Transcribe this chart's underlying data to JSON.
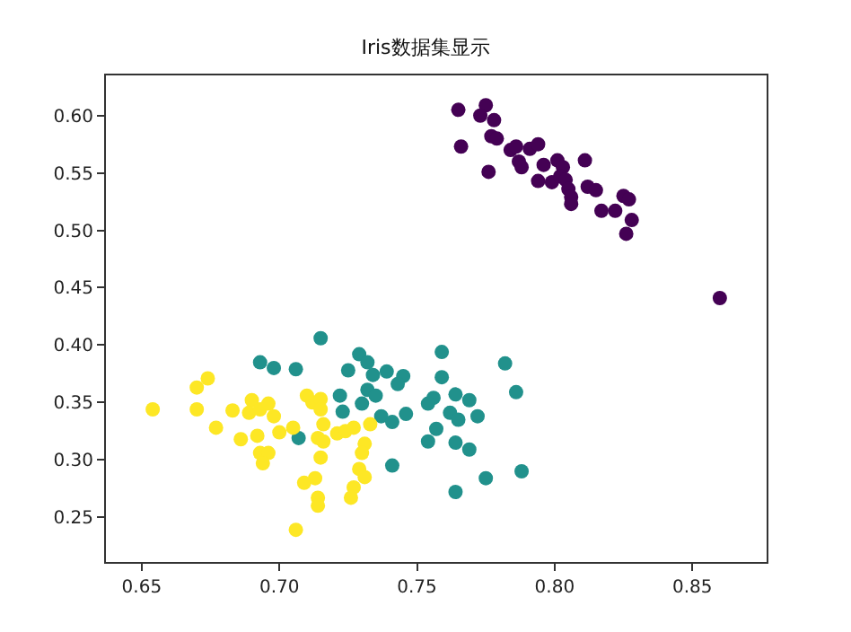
{
  "chart_data": {
    "type": "scatter",
    "title": "Iris数据集显示",
    "marker": "circle",
    "xlim": [
      0.637,
      0.877
    ],
    "ylim": [
      0.211,
      0.635
    ],
    "xticks": [
      {
        "value": 0.65,
        "label": "0.65"
      },
      {
        "value": 0.7,
        "label": "0.70"
      },
      {
        "value": 0.75,
        "label": "0.75"
      },
      {
        "value": 0.8,
        "label": "0.80"
      },
      {
        "value": 0.85,
        "label": "0.85"
      }
    ],
    "yticks": [
      {
        "value": 0.25,
        "label": "0.25"
      },
      {
        "value": 0.3,
        "label": "0.30"
      },
      {
        "value": 0.35,
        "label": "0.35"
      },
      {
        "value": 0.4,
        "label": "0.40"
      },
      {
        "value": 0.45,
        "label": "0.45"
      },
      {
        "value": 0.5,
        "label": "0.50"
      },
      {
        "value": 0.55,
        "label": "0.55"
      },
      {
        "value": 0.6,
        "label": "0.60"
      }
    ],
    "series": [
      {
        "color": "#440154",
        "x": [
          0.765,
          0.775,
          0.773,
          0.778,
          0.766,
          0.777,
          0.779,
          0.776,
          0.784,
          0.786,
          0.787,
          0.788,
          0.791,
          0.794,
          0.796,
          0.801,
          0.803,
          0.794,
          0.799,
          0.802,
          0.804,
          0.805,
          0.806,
          0.806,
          0.811,
          0.812,
          0.815,
          0.817,
          0.822,
          0.825,
          0.827,
          0.828,
          0.826,
          0.86
        ],
        "values": [
          0.605,
          0.609,
          0.6,
          0.596,
          0.573,
          0.582,
          0.58,
          0.551,
          0.57,
          0.573,
          0.56,
          0.555,
          0.571,
          0.575,
          0.557,
          0.561,
          0.555,
          0.543,
          0.542,
          0.547,
          0.544,
          0.536,
          0.529,
          0.523,
          0.561,
          0.538,
          0.535,
          0.517,
          0.517,
          0.53,
          0.527,
          0.509,
          0.497,
          0.441
        ]
      },
      {
        "color": "#21918c",
        "x": [
          0.715,
          0.693,
          0.698,
          0.706,
          0.729,
          0.732,
          0.725,
          0.734,
          0.739,
          0.745,
          0.743,
          0.759,
          0.759,
          0.732,
          0.735,
          0.722,
          0.73,
          0.723,
          0.737,
          0.746,
          0.741,
          0.756,
          0.754,
          0.762,
          0.757,
          0.754,
          0.764,
          0.707,
          0.741,
          0.764,
          0.782,
          0.786,
          0.769,
          0.765,
          0.772,
          0.769,
          0.775,
          0.788,
          0.764
        ],
        "values": [
          0.406,
          0.385,
          0.38,
          0.379,
          0.392,
          0.385,
          0.378,
          0.374,
          0.377,
          0.373,
          0.366,
          0.394,
          0.372,
          0.361,
          0.356,
          0.356,
          0.349,
          0.342,
          0.338,
          0.34,
          0.333,
          0.354,
          0.349,
          0.341,
          0.327,
          0.316,
          0.315,
          0.319,
          0.295,
          0.272,
          0.384,
          0.359,
          0.352,
          0.335,
          0.338,
          0.309,
          0.284,
          0.29,
          0.357
        ]
      },
      {
        "color": "#fde725",
        "x": [
          0.654,
          0.67,
          0.67,
          0.674,
          0.677,
          0.683,
          0.686,
          0.69,
          0.689,
          0.693,
          0.696,
          0.698,
          0.692,
          0.693,
          0.696,
          0.694,
          0.7,
          0.705,
          0.71,
          0.712,
          0.715,
          0.715,
          0.716,
          0.714,
          0.716,
          0.721,
          0.724,
          0.727,
          0.733,
          0.731,
          0.73,
          0.715,
          0.729,
          0.731,
          0.713,
          0.709,
          0.727,
          0.726,
          0.714,
          0.714,
          0.706
        ],
        "values": [
          0.344,
          0.344,
          0.363,
          0.371,
          0.328,
          0.343,
          0.318,
          0.352,
          0.341,
          0.344,
          0.349,
          0.338,
          0.321,
          0.306,
          0.306,
          0.297,
          0.324,
          0.328,
          0.356,
          0.35,
          0.353,
          0.344,
          0.331,
          0.319,
          0.316,
          0.323,
          0.325,
          0.328,
          0.331,
          0.314,
          0.306,
          0.302,
          0.292,
          0.285,
          0.284,
          0.28,
          0.276,
          0.267,
          0.267,
          0.26,
          0.239
        ]
      }
    ]
  }
}
